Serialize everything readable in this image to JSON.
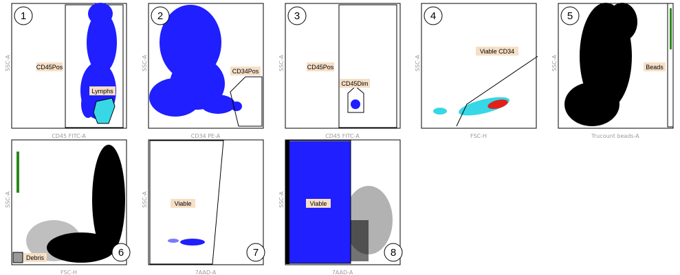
{
  "chart_data": [
    {
      "panel_number": "1",
      "type": "scatter",
      "xlabel": "CD45 FITC-A",
      "ylabel": "SSC-A",
      "gates": [
        {
          "label": "CD45Pos"
        },
        {
          "label": "Lymphs"
        }
      ],
      "series": [
        {
          "color": "#1f1fff"
        },
        {
          "color": "#37d7e6"
        }
      ]
    },
    {
      "panel_number": "2",
      "type": "scatter",
      "xlabel": "CD34 PE-A",
      "ylabel": "SSC-A",
      "gates": [
        {
          "label": "CD34Pos"
        }
      ],
      "series": [
        {
          "color": "#1f1fff"
        }
      ]
    },
    {
      "panel_number": "3",
      "type": "scatter",
      "xlabel": "CD45 FITC-A",
      "ylabel": "SSC-A",
      "gates": [
        {
          "label": "CD45Pos"
        },
        {
          "label": "CD45Dim"
        }
      ],
      "series": [
        {
          "color": "#1f1fff"
        }
      ]
    },
    {
      "panel_number": "4",
      "type": "scatter",
      "xlabel": "FSC-H",
      "ylabel": "SSC-A",
      "gates": [
        {
          "label": "Viable CD34"
        }
      ],
      "series": [
        {
          "color": "#37d7e6"
        },
        {
          "color": "#e0201a"
        }
      ]
    },
    {
      "panel_number": "5",
      "type": "scatter",
      "xlabel": "Trucount beads-A",
      "ylabel": "SSC-A",
      "gates": [
        {
          "label": "Beads"
        }
      ],
      "series": [
        {
          "color": "#000000"
        },
        {
          "color": "#2a8a1a"
        }
      ]
    },
    {
      "panel_number": "6",
      "type": "scatter",
      "xlabel": "FSC-H",
      "ylabel": "SSC-A",
      "gates": [
        {
          "label": "Debris"
        }
      ],
      "series": [
        {
          "color": "#000000"
        },
        {
          "color": "#2a8a1a"
        }
      ]
    },
    {
      "panel_number": "7",
      "type": "scatter",
      "xlabel": "7AAD-A",
      "ylabel": "SSC-A",
      "gates": [
        {
          "label": "Viable"
        }
      ],
      "series": [
        {
          "color": "#1f1fff"
        }
      ]
    },
    {
      "panel_number": "8",
      "type": "scatter",
      "xlabel": "7AAD-A",
      "ylabel": "SSC-A",
      "gates": [
        {
          "label": "Viable"
        }
      ],
      "series": [
        {
          "color": "#1f1fff"
        },
        {
          "color": "#000000"
        }
      ]
    }
  ]
}
